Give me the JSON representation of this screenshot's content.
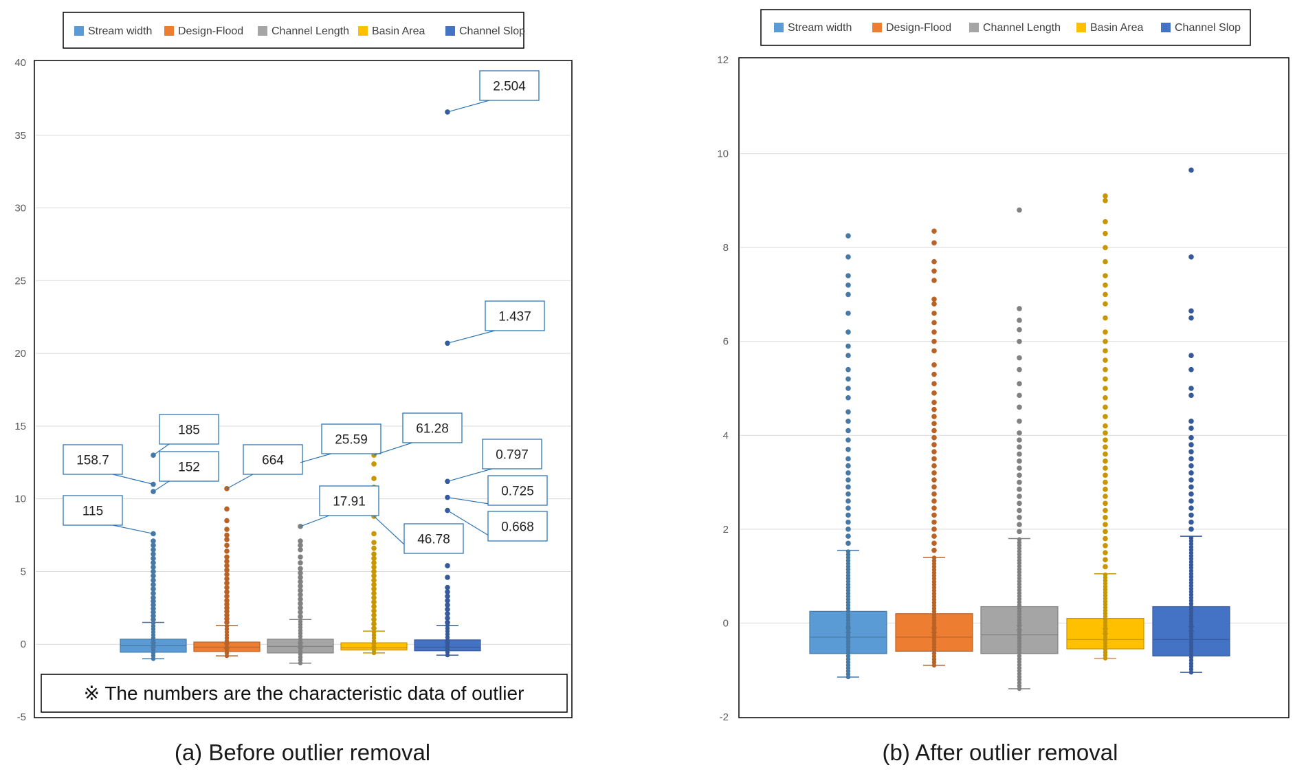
{
  "colors": {
    "stream_width": "#5B9BD5",
    "design_flood": "#ED7D31",
    "channel_length": "#A5A5A5",
    "basin_area": "#FFC000",
    "channel_slop": "#4472C4",
    "frame": "#000000",
    "grid": "#D9D9D9",
    "callout_border": "#2E75B6"
  },
  "legend": [
    "Stream width",
    "Design-Flood",
    "Channel Length",
    "Basin Area",
    "Channel Slop"
  ],
  "note": "※ The numbers are the characteristic data of outlier",
  "chart_data": [
    {
      "type": "box",
      "caption": "(a) Before outlier removal",
      "ylim": [
        -5,
        40
      ],
      "yticks": [
        -5,
        0,
        5,
        10,
        15,
        20,
        25,
        30,
        35,
        40
      ],
      "grid": true,
      "legend_position": "top",
      "series": [
        {
          "name": "Stream width",
          "min": -1.0,
          "q1": -0.55,
          "median": -0.1,
          "q3": 0.35,
          "max": 1.5,
          "outliers": [
            1.7,
            1.95,
            2.2,
            2.45,
            2.7,
            2.95,
            3.2,
            3.5,
            3.8,
            4.1,
            4.4,
            4.7,
            5.0,
            5.3,
            5.6,
            5.9,
            6.2,
            6.5,
            6.8,
            7.1,
            7.6,
            10.5,
            11.0,
            13.0
          ]
        },
        {
          "name": "Design-Flood",
          "min": -0.8,
          "q1": -0.5,
          "median": -0.2,
          "q3": 0.15,
          "max": 1.3,
          "outliers": [
            1.5,
            1.75,
            2.0,
            2.25,
            2.5,
            2.75,
            3.0,
            3.3,
            3.6,
            3.9,
            4.2,
            4.5,
            4.8,
            5.1,
            5.4,
            5.7,
            6.0,
            6.4,
            6.8,
            7.2,
            7.5,
            7.9,
            8.5,
            9.3,
            10.7
          ]
        },
        {
          "name": "Channel Length",
          "min": -1.3,
          "q1": -0.6,
          "median": -0.15,
          "q3": 0.35,
          "max": 1.7,
          "outliers": [
            1.9,
            2.2,
            2.5,
            2.8,
            3.1,
            3.4,
            3.7,
            4.0,
            4.3,
            4.6,
            4.9,
            5.2,
            5.6,
            6.0,
            6.5,
            6.8,
            7.1,
            8.1,
            12.5
          ]
        },
        {
          "name": "Basin Area",
          "min": -0.6,
          "q1": -0.4,
          "median": -0.25,
          "q3": 0.1,
          "max": 0.9,
          "outliers": [
            1.1,
            1.4,
            1.7,
            2.0,
            2.3,
            2.6,
            2.9,
            3.2,
            3.5,
            3.8,
            4.1,
            4.4,
            4.7,
            5.0,
            5.3,
            5.6,
            5.9,
            6.2,
            6.6,
            7.0,
            7.6,
            8.8,
            9.8,
            10.2,
            10.8,
            11.4,
            12.4,
            13.0
          ]
        },
        {
          "name": "Channel Slop",
          "min": -0.75,
          "q1": -0.45,
          "median": -0.2,
          "q3": 0.3,
          "max": 1.3,
          "outliers": [
            1.5,
            1.8,
            2.1,
            2.4,
            2.7,
            3.0,
            3.3,
            3.6,
            3.9,
            4.6,
            5.4,
            6.7,
            9.2,
            10.1,
            11.2,
            20.7,
            36.6
          ]
        }
      ],
      "annotations": [
        {
          "series": "Stream width",
          "value": 13.0,
          "label": "185"
        },
        {
          "series": "Stream width",
          "value": 11.0,
          "label": "158.7"
        },
        {
          "series": "Stream width",
          "value": 10.5,
          "label": "152"
        },
        {
          "series": "Stream width",
          "value": 7.6,
          "label": "115"
        },
        {
          "series": "Design-Flood",
          "value": 10.7,
          "label": "664"
        },
        {
          "series": "Channel Length",
          "value": 12.5,
          "label": "25.59"
        },
        {
          "series": "Channel Length",
          "value": 8.1,
          "label": "17.91"
        },
        {
          "series": "Basin Area",
          "value": 13.0,
          "label": "61.28"
        },
        {
          "series": "Basin Area",
          "value": 8.8,
          "label": "46.78"
        },
        {
          "series": "Channel Slop",
          "value": 36.6,
          "label": "2.504"
        },
        {
          "series": "Channel Slop",
          "value": 20.7,
          "label": "1.437"
        },
        {
          "series": "Channel Slop",
          "value": 11.2,
          "label": "0.797"
        },
        {
          "series": "Channel Slop",
          "value": 10.1,
          "label": "0.725"
        },
        {
          "series": "Channel Slop",
          "value": 9.2,
          "label": "0.668"
        }
      ]
    },
    {
      "type": "box",
      "caption": "(b) After outlier removal",
      "ylim": [
        -2,
        12
      ],
      "yticks": [
        -2,
        0,
        2,
        4,
        6,
        8,
        10,
        12
      ],
      "grid": true,
      "legend_position": "top",
      "series": [
        {
          "name": "Stream width",
          "min": -1.15,
          "q1": -0.65,
          "median": -0.3,
          "q3": 0.25,
          "max": 1.55,
          "outliers": [
            1.7,
            1.85,
            2.0,
            2.15,
            2.3,
            2.45,
            2.6,
            2.75,
            2.9,
            3.05,
            3.2,
            3.35,
            3.5,
            3.7,
            3.9,
            4.1,
            4.3,
            4.5,
            4.8,
            5.0,
            5.2,
            5.4,
            5.7,
            5.9,
            6.2,
            6.6,
            7.0,
            7.2,
            7.4,
            7.8,
            8.25
          ]
        },
        {
          "name": "Design-Flood",
          "min": -0.9,
          "q1": -0.6,
          "median": -0.3,
          "q3": 0.2,
          "max": 1.4,
          "outliers": [
            1.55,
            1.7,
            1.85,
            2.0,
            2.15,
            2.3,
            2.45,
            2.6,
            2.75,
            2.9,
            3.05,
            3.2,
            3.35,
            3.5,
            3.65,
            3.8,
            3.95,
            4.1,
            4.25,
            4.4,
            4.55,
            4.7,
            4.9,
            5.1,
            5.3,
            5.5,
            5.8,
            6.0,
            6.2,
            6.4,
            6.6,
            6.8,
            6.9,
            7.3,
            7.5,
            7.7,
            8.1,
            8.35
          ]
        },
        {
          "name": "Channel Length",
          "min": -1.4,
          "q1": -0.65,
          "median": -0.25,
          "q3": 0.35,
          "max": 1.8,
          "outliers": [
            1.95,
            2.1,
            2.25,
            2.4,
            2.55,
            2.7,
            2.85,
            3.0,
            3.15,
            3.3,
            3.45,
            3.6,
            3.75,
            3.9,
            4.05,
            4.3,
            4.6,
            4.85,
            5.1,
            5.4,
            5.65,
            6.0,
            6.25,
            6.45,
            6.7,
            8.8
          ]
        },
        {
          "name": "Basin Area",
          "min": -0.75,
          "q1": -0.55,
          "median": -0.35,
          "q3": 0.1,
          "max": 1.05,
          "outliers": [
            1.2,
            1.35,
            1.5,
            1.65,
            1.8,
            1.95,
            2.1,
            2.25,
            2.4,
            2.55,
            2.7,
            2.85,
            3.0,
            3.15,
            3.3,
            3.45,
            3.6,
            3.75,
            3.9,
            4.05,
            4.2,
            4.4,
            4.6,
            4.8,
            5.0,
            5.2,
            5.4,
            5.6,
            5.8,
            6.0,
            6.2,
            6.5,
            6.8,
            7.0,
            7.2,
            7.4,
            7.7,
            8.0,
            8.3,
            8.55,
            9.0,
            9.1
          ]
        },
        {
          "name": "Channel Slop",
          "min": -1.05,
          "q1": -0.7,
          "median": -0.35,
          "q3": 0.35,
          "max": 1.85,
          "outliers": [
            2.0,
            2.15,
            2.3,
            2.45,
            2.6,
            2.75,
            2.9,
            3.05,
            3.2,
            3.35,
            3.5,
            3.65,
            3.8,
            3.95,
            4.15,
            4.3,
            4.85,
            5.0,
            5.4,
            5.7,
            6.5,
            6.65,
            7.8,
            9.65
          ]
        }
      ],
      "annotations": []
    }
  ]
}
